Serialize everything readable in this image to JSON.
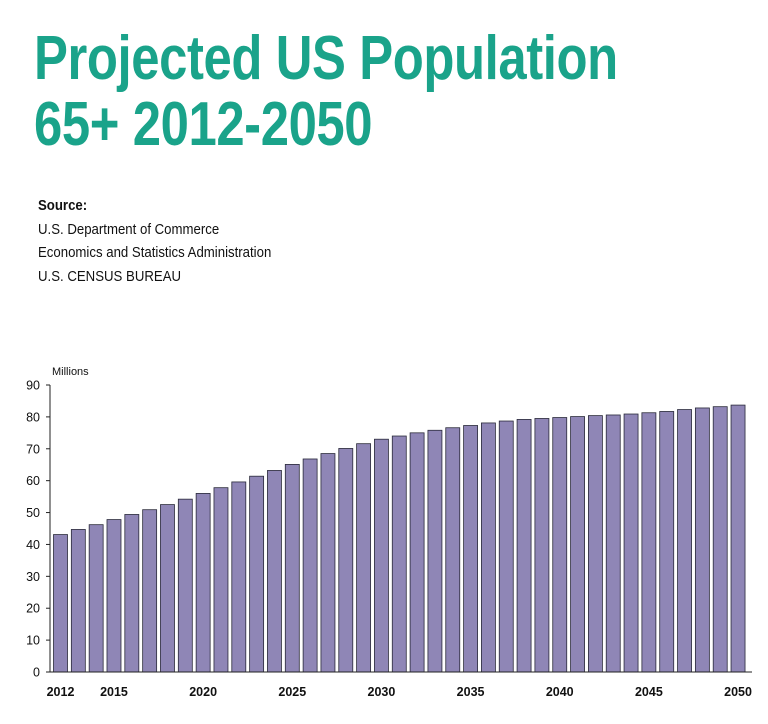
{
  "header": {
    "title_line1": "Projected US Population",
    "title_line2": "65+ 2012-2050"
  },
  "source": {
    "label": "Source:",
    "lines": [
      "U.S. Department of Commerce",
      "Economics and Statistics Administration",
      "U.S. CENSUS BUREAU"
    ]
  },
  "colors": {
    "title": "#1aa38a",
    "bar_fill": "#8f86b6",
    "bar_stroke": "#2a2a3a"
  },
  "chart_data": {
    "type": "bar",
    "title": "",
    "ylabel": "Millions",
    "xlabel": "",
    "ylim": [
      0,
      90
    ],
    "yticks": [
      0,
      10,
      20,
      30,
      40,
      50,
      60,
      70,
      80,
      90
    ],
    "xtick_labels": [
      "2012",
      "2015",
      "2020",
      "2025",
      "2030",
      "2035",
      "2040",
      "2045",
      "2050"
    ],
    "grid": false,
    "categories": [
      2012,
      2013,
      2014,
      2015,
      2016,
      2017,
      2018,
      2019,
      2020,
      2021,
      2022,
      2023,
      2024,
      2025,
      2026,
      2027,
      2028,
      2029,
      2030,
      2031,
      2032,
      2033,
      2034,
      2035,
      2036,
      2037,
      2038,
      2039,
      2040,
      2041,
      2042,
      2043,
      2044,
      2045,
      2046,
      2047,
      2048,
      2049,
      2050
    ],
    "values": [
      43.1,
      44.7,
      46.2,
      47.8,
      49.4,
      50.9,
      52.5,
      54.2,
      56.0,
      57.8,
      59.6,
      61.4,
      63.2,
      65.1,
      66.8,
      68.5,
      70.1,
      71.6,
      73.0,
      74.0,
      75.0,
      75.8,
      76.6,
      77.3,
      78.1,
      78.7,
      79.2,
      79.5,
      79.8,
      80.1,
      80.4,
      80.6,
      80.9,
      81.3,
      81.7,
      82.3,
      82.8,
      83.2,
      83.7
    ]
  }
}
